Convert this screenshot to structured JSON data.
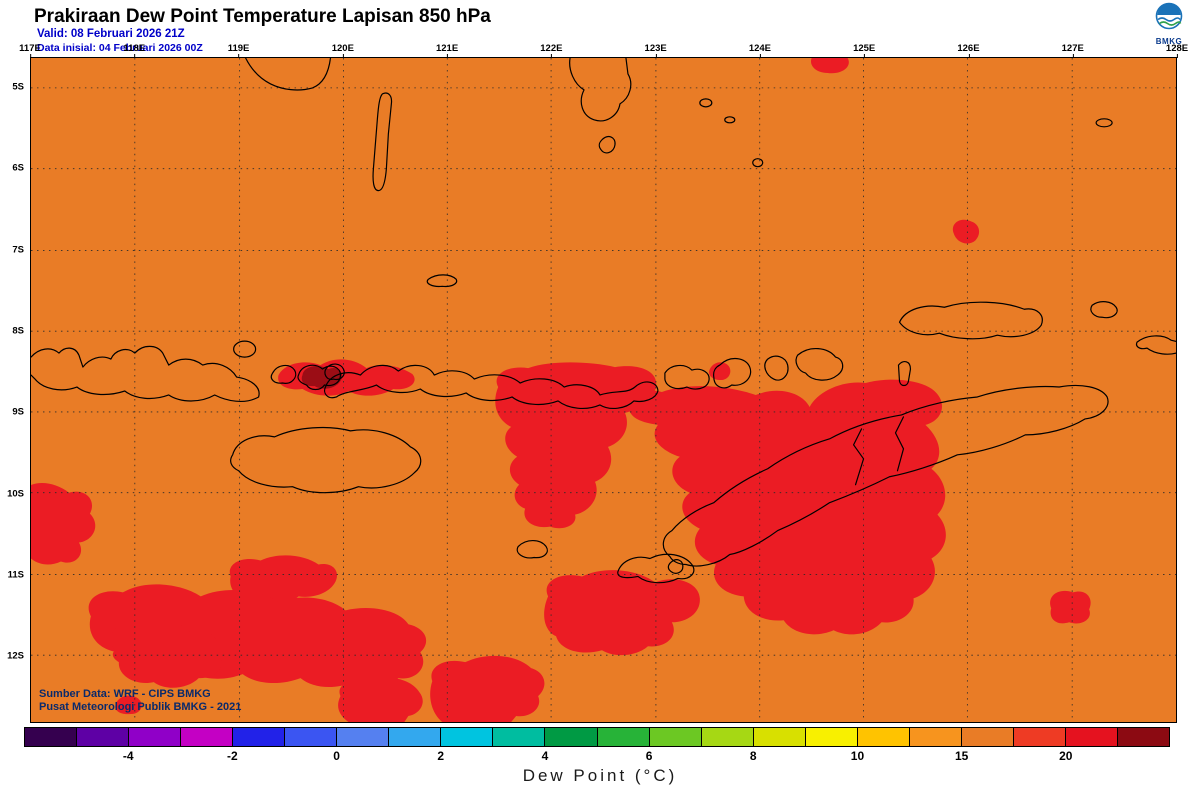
{
  "header": {
    "title": "Prakiraan Dew Point Temperature Lapisan 850 hPa",
    "valid_label": "Valid: 08 Februari 2026 21Z",
    "init_label": "Data inisial: 04 Februari 2026 00Z",
    "logo_text": "BMKG"
  },
  "map": {
    "lon_labels": [
      "117E",
      "118E",
      "119E",
      "120E",
      "121E",
      "122E",
      "123E",
      "124E",
      "125E",
      "126E",
      "127E",
      "128E"
    ],
    "lat_labels": [
      "5S",
      "6S",
      "7S",
      "8S",
      "9S",
      "10S",
      "11S",
      "12S"
    ],
    "source_line1": "Sumber Data: WRF - CIPS BMKG",
    "source_line2": "Pusat Meteorologi Publik BMKG - 2021",
    "sea_land_color": "#E97C26",
    "high_dewpoint_color": "#EB1C24",
    "highest_dewpoint_color": "#9B0D15",
    "coastline_color": "#000000",
    "grid_color": "#2B2B2B"
  },
  "colorbar": {
    "label": "Dew Point (°C)",
    "tick_labels": [
      "-4",
      "-2",
      "0",
      "2",
      "4",
      "6",
      "8",
      "10",
      "15",
      "20"
    ],
    "segment_colors": [
      "#35004F",
      "#5E00A5",
      "#9000C8",
      "#C400C4",
      "#2222E8",
      "#3B55F2",
      "#5580F0",
      "#33A8EE",
      "#00C4E0",
      "#00BDA0",
      "#009A44",
      "#27B338",
      "#6CC823",
      "#A6D814",
      "#D8E000",
      "#F8F000",
      "#FFC300",
      "#F7941E",
      "#E97C26",
      "#EE3B24",
      "#E5121F",
      "#8C0A12"
    ]
  }
}
